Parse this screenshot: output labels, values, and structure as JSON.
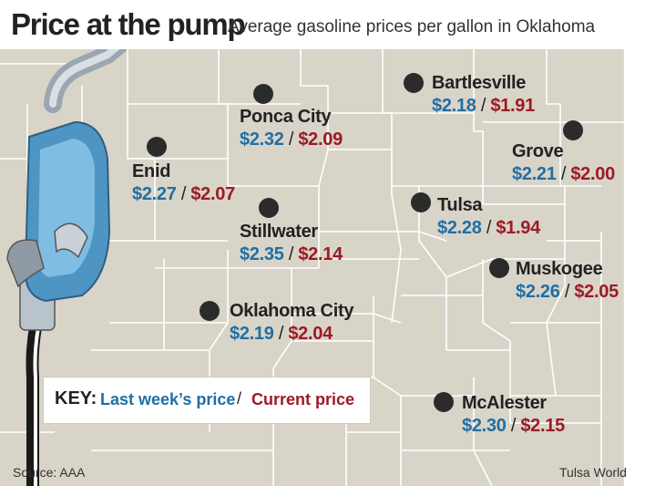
{
  "header": {
    "title": "Price at the pump",
    "subtitle": "Average gasoline prices per gallon in Oklahoma"
  },
  "colors": {
    "last_week": "#1f6fa5",
    "current": "#9c1a24",
    "map_fill": "#d9d4c8",
    "border_line": "#ffffff"
  },
  "cities": [
    {
      "name": "Bartlesville",
      "last": "$2.18",
      "current": "$1.91"
    },
    {
      "name": "Ponca City",
      "last": "$2.32",
      "current": "$2.09"
    },
    {
      "name": "Grove",
      "last": "$2.21",
      "current": "$2.00"
    },
    {
      "name": "Enid",
      "last": "$2.27",
      "current": "$2.07"
    },
    {
      "name": "Tulsa",
      "last": "$2.28",
      "current": "$1.94"
    },
    {
      "name": "Stillwater",
      "last": "$2.35",
      "current": "$2.14"
    },
    {
      "name": "Muskogee",
      "last": "$2.26",
      "current": "$2.05"
    },
    {
      "name": "Oklahoma City",
      "last": "$2.19",
      "current": "$2.04"
    },
    {
      "name": "McAlester",
      "last": "$2.30",
      "current": "$2.15"
    }
  ],
  "key": {
    "label": "KEY:",
    "last_week": "Last week’s price",
    "separator": "/",
    "current": "Current price"
  },
  "price_separator": "/",
  "footer": {
    "source": "Source: AAA",
    "credit": "Tulsa World"
  },
  "icons": {
    "pump": "gas-pump-nozzle-icon",
    "city": "city-marker-dot"
  }
}
